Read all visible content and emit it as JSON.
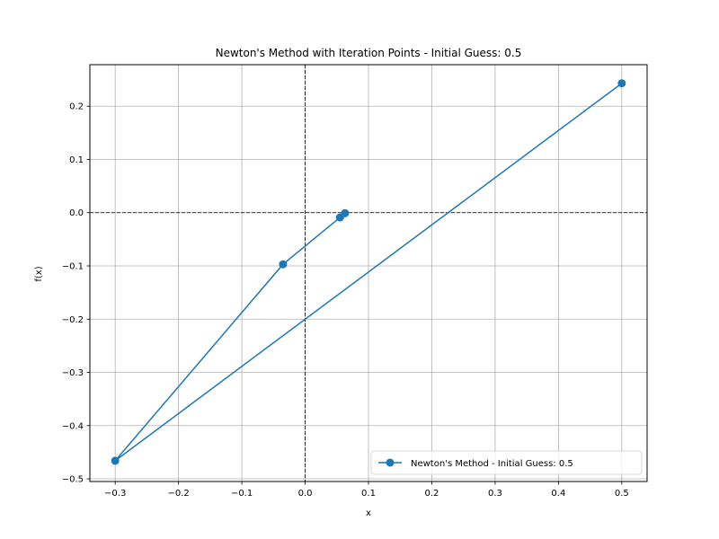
{
  "chart_data": {
    "type": "line",
    "title": "Newton's Method with Iteration Points - Initial Guess: 0.5",
    "xlabel": "x",
    "ylabel": "f(x)",
    "xlim": [
      -0.34,
      0.54
    ],
    "ylim": [
      -0.505,
      0.278
    ],
    "xticks": [
      -0.3,
      -0.2,
      -0.1,
      0.0,
      0.1,
      0.2,
      0.3,
      0.4,
      0.5
    ],
    "xtick_labels": [
      "−0.3",
      "−0.2",
      "−0.1",
      "0.0",
      "0.1",
      "0.2",
      "0.3",
      "0.4",
      "0.5"
    ],
    "yticks": [
      -0.5,
      -0.4,
      -0.3,
      -0.2,
      -0.1,
      0.0,
      0.1,
      0.2
    ],
    "ytick_labels": [
      "−0.5",
      "−0.4",
      "−0.3",
      "−0.2",
      "−0.1",
      "0.0",
      "0.1",
      "0.2"
    ],
    "grid": true,
    "reference_lines": {
      "x": 0,
      "y": 0,
      "style": "dashed",
      "color": "#000000"
    },
    "legend_position": "bottom-right",
    "series": [
      {
        "name": "Newton's Method - Initial Guess: 0.5",
        "color": "#1f77b4",
        "marker": "circle",
        "x": [
          0.5,
          -0.3,
          -0.035,
          0.055,
          0.063
        ],
        "y": [
          0.243,
          -0.466,
          -0.097,
          -0.009,
          -0.001
        ]
      }
    ]
  }
}
